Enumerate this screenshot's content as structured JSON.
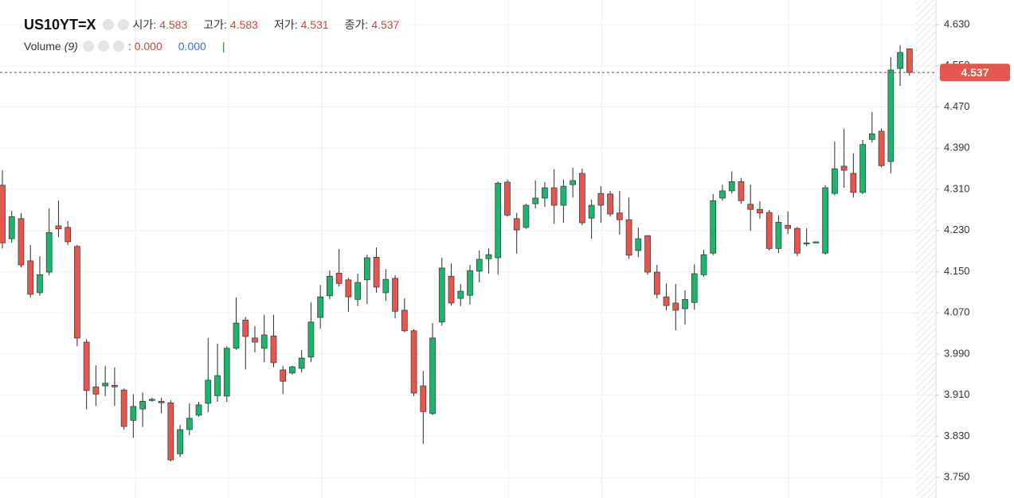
{
  "chart_data": {
    "type": "candlestick",
    "title": "US10YT=X",
    "ohlc_labels": [
      "시가:",
      "고가:",
      "저가:",
      "종가:"
    ],
    "volume": {
      "label": "Volume",
      "period": "(9)",
      "separator": ":",
      "values": [
        "0.000",
        "0.000"
      ],
      "marker": "|"
    },
    "up_color": "#1db46e",
    "down_color": "#e5574e",
    "grid": true,
    "ylim": [
      3.71,
      4.678
    ],
    "yticks": [
      {
        "value": 3.75,
        "label": "3.750"
      },
      {
        "value": 3.83,
        "label": "3.830"
      },
      {
        "value": 3.91,
        "label": "3.910"
      },
      {
        "value": 3.99,
        "label": "3.990"
      },
      {
        "value": 4.07,
        "label": "4.070"
      },
      {
        "value": 4.15,
        "label": "4.150"
      },
      {
        "value": 4.23,
        "label": "4.230"
      },
      {
        "value": 4.31,
        "label": "4.310"
      },
      {
        "value": 4.39,
        "label": "4.390"
      },
      {
        "value": 4.47,
        "label": "4.470"
      },
      {
        "value": 4.55,
        "label": "4.550"
      },
      {
        "value": 4.63,
        "label": "4.630"
      }
    ],
    "open": [
      4.318,
      4.214,
      4.253,
      4.171,
      4.109,
      4.149,
      4.239,
      4.236,
      4.199,
      4.013,
      3.926,
      3.928,
      3.929,
      3.92,
      3.861,
      3.883,
      3.9,
      3.898,
      3.895,
      3.796,
      3.843,
      3.871,
      3.894,
      3.909,
      3.908,
      4.001,
      4.056,
      4.021,
      4.001,
      4.025,
      3.959,
      3.953,
      3.962,
      3.984,
      4.061,
      4.103,
      4.147,
      4.134,
      4.096,
      4.134,
      4.178,
      4.109,
      4.137,
      4.075,
      4.035,
      3.928,
      3.874,
      4.052,
      4.141,
      4.098,
      4.104,
      4.151,
      4.175,
      4.177,
      4.324,
      4.253,
      4.236,
      4.282,
      4.293,
      4.313,
      4.279,
      4.319,
      4.341,
      4.254,
      4.302,
      4.301,
      4.264,
      4.251,
      4.191,
      4.22,
      4.149,
      4.101,
      4.089,
      4.078,
      4.09,
      4.144,
      4.186,
      4.293,
      4.307,
      4.325,
      4.281,
      4.271,
      4.265,
      4.195,
      4.24,
      4.234,
      4.205,
      4.206,
      4.186,
      4.302,
      4.355,
      4.341,
      4.304,
      4.407,
      4.423,
      4.364,
      4.545,
      4.583
    ],
    "high": [
      4.347,
      4.268,
      4.264,
      4.202,
      4.18,
      4.273,
      4.288,
      4.248,
      4.202,
      4.019,
      3.968,
      3.967,
      3.964,
      3.923,
      3.912,
      3.915,
      3.905,
      3.905,
      3.9,
      3.852,
      3.894,
      3.897,
      4.021,
      4.01,
      4.005,
      4.1,
      4.062,
      4.044,
      4.066,
      4.066,
      3.967,
      3.967,
      3.998,
      4.09,
      4.124,
      4.152,
      4.194,
      4.138,
      4.146,
      4.183,
      4.197,
      4.155,
      4.143,
      4.098,
      4.038,
      3.957,
      4.05,
      4.177,
      4.166,
      4.126,
      4.163,
      4.191,
      4.195,
      4.325,
      4.329,
      4.264,
      4.282,
      4.327,
      4.324,
      4.349,
      4.329,
      4.352,
      4.35,
      4.29,
      4.316,
      4.307,
      4.307,
      4.294,
      4.236,
      4.22,
      4.163,
      4.127,
      4.126,
      4.114,
      4.164,
      4.192,
      4.301,
      4.319,
      4.345,
      4.332,
      4.319,
      4.287,
      4.27,
      4.259,
      4.267,
      4.237,
      4.234,
      4.208,
      4.318,
      4.403,
      4.428,
      4.38,
      4.406,
      4.46,
      4.428,
      4.567,
      4.59,
      4.583
    ],
    "low": [
      4.195,
      4.206,
      4.158,
      4.1,
      4.103,
      4.143,
      4.217,
      4.202,
      4.005,
      3.882,
      3.889,
      3.908,
      3.889,
      3.843,
      3.827,
      3.848,
      3.897,
      3.875,
      3.781,
      3.79,
      3.832,
      3.868,
      3.877,
      3.897,
      3.897,
      3.998,
      3.96,
      3.993,
      3.974,
      3.964,
      3.912,
      3.95,
      3.954,
      3.974,
      4.039,
      4.096,
      4.121,
      4.072,
      4.083,
      4.087,
      4.109,
      4.093,
      4.059,
      4.032,
      3.908,
      3.815,
      3.871,
      4.045,
      4.084,
      4.083,
      4.086,
      4.129,
      4.146,
      4.144,
      4.257,
      4.185,
      4.233,
      4.273,
      4.276,
      4.243,
      4.245,
      4.294,
      4.24,
      4.214,
      4.245,
      4.257,
      4.222,
      4.175,
      4.178,
      4.144,
      4.098,
      4.075,
      4.036,
      4.047,
      4.076,
      4.14,
      4.182,
      4.288,
      4.302,
      4.282,
      4.229,
      4.253,
      4.191,
      4.186,
      4.223,
      4.18,
      4.199,
      4.206,
      4.183,
      4.298,
      4.313,
      4.294,
      4.301,
      4.401,
      4.353,
      4.341,
      4.511,
      4.531
    ],
    "close": [
      4.206,
      4.257,
      4.163,
      4.106,
      4.144,
      4.226,
      4.233,
      4.208,
      4.021,
      3.919,
      3.912,
      3.933,
      3.926,
      3.849,
      3.888,
      3.898,
      3.902,
      3.895,
      3.784,
      3.843,
      3.865,
      3.891,
      3.939,
      3.948,
      4.001,
      4.05,
      4.024,
      4.013,
      4.027,
      3.973,
      3.937,
      3.965,
      3.982,
      4.052,
      4.101,
      4.141,
      4.127,
      4.101,
      4.129,
      4.177,
      4.12,
      4.135,
      4.073,
      4.035,
      3.914,
      3.878,
      4.021,
      4.157,
      4.089,
      4.112,
      4.152,
      4.174,
      4.183,
      4.322,
      4.26,
      4.231,
      4.279,
      4.293,
      4.313,
      4.279,
      4.316,
      4.327,
      4.245,
      4.279,
      4.279,
      4.262,
      4.251,
      4.182,
      4.214,
      4.149,
      4.106,
      4.084,
      4.075,
      4.096,
      4.146,
      4.183,
      4.288,
      4.307,
      4.325,
      4.288,
      4.271,
      4.264,
      4.195,
      4.246,
      4.234,
      4.186,
      4.206,
      4.208,
      4.313,
      4.35,
      4.347,
      4.304,
      4.397,
      4.418,
      4.356,
      4.542,
      4.576,
      4.537
    ]
  }
}
